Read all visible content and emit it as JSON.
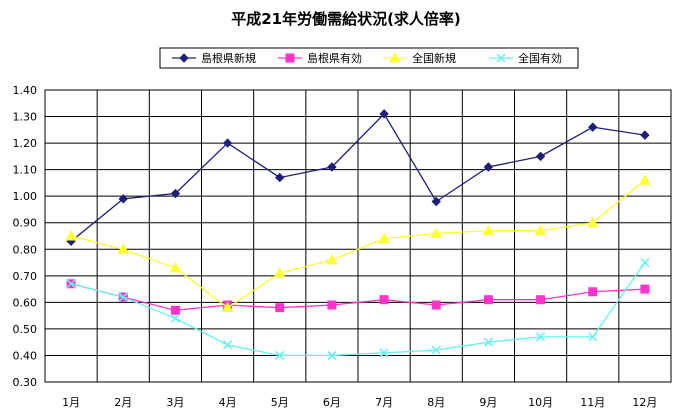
{
  "chart_data": {
    "type": "line",
    "title": "平成21年労働需給状況(求人倍率)",
    "xlabel": "",
    "ylabel": "",
    "categories": [
      "1月",
      "2月",
      "3月",
      "4月",
      "5月",
      "6月",
      "7月",
      "8月",
      "9月",
      "10月",
      "11月",
      "12月"
    ],
    "ylim": [
      0.3,
      1.4
    ],
    "yticks": [
      "0.30",
      "0.40",
      "0.50",
      "0.60",
      "0.70",
      "0.80",
      "0.90",
      "1.00",
      "1.10",
      "1.20",
      "1.30",
      "1.40"
    ],
    "grid": true,
    "legend_position": "top",
    "series": [
      {
        "name": "島根県新規",
        "color": "#1f1f7a",
        "marker": "diamond",
        "values": [
          0.83,
          0.99,
          1.01,
          1.2,
          1.07,
          1.11,
          1.31,
          0.98,
          1.11,
          1.15,
          1.26,
          1.23
        ]
      },
      {
        "name": "島根県有効",
        "color": "#ff33cc",
        "marker": "square",
        "values": [
          0.67,
          0.62,
          0.57,
          0.59,
          0.58,
          0.59,
          0.61,
          0.59,
          0.61,
          0.61,
          0.64,
          0.65
        ]
      },
      {
        "name": "全国新規",
        "color": "#ffff33",
        "marker": "triangle",
        "values": [
          0.85,
          0.8,
          0.73,
          0.58,
          0.71,
          0.76,
          0.84,
          0.86,
          0.87,
          0.87,
          0.9,
          1.06
        ]
      },
      {
        "name": "全国有効",
        "color": "#66f0f0",
        "marker": "x",
        "values": [
          0.67,
          0.62,
          0.54,
          0.44,
          0.4,
          0.4,
          0.41,
          0.42,
          0.45,
          0.47,
          0.47,
          0.75
        ]
      }
    ]
  }
}
